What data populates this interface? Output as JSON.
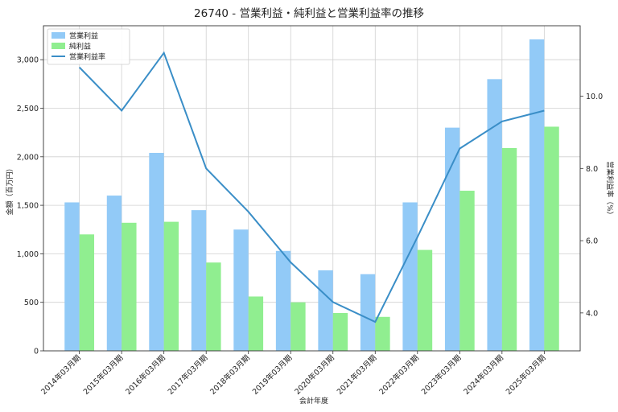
{
  "chart_data": {
    "type": "bar",
    "title": "26740 - 営業利益・純利益と営業利益率の推移",
    "xlabel": "会計年度",
    "ylabel": "金額（百万円）",
    "y2label": "営業利益率（%）",
    "categories": [
      "2014年03月期",
      "2015年03月期",
      "2016年03月期",
      "2017年03月期",
      "2018年03月期",
      "2019年03月期",
      "2020年03月期",
      "2021年03月期",
      "2022年03月期",
      "2023年03月期",
      "2024年03月期",
      "2025年03月期"
    ],
    "series": [
      {
        "name": "営業利益",
        "kind": "bar",
        "axis": "left",
        "color": "#92caf7",
        "values": [
          1530,
          1600,
          2040,
          1450,
          1250,
          1030,
          830,
          790,
          1530,
          2300,
          2800,
          3210
        ]
      },
      {
        "name": "純利益",
        "kind": "bar",
        "axis": "left",
        "color": "#90ee90",
        "values": [
          1200,
          1320,
          1330,
          910,
          560,
          500,
          390,
          350,
          1040,
          1650,
          2090,
          2310
        ]
      },
      {
        "name": "営業利益率",
        "kind": "line",
        "axis": "right",
        "color": "#3a8ec7",
        "values": [
          10.8,
          9.6,
          11.2,
          8.0,
          6.8,
          5.4,
          4.3,
          3.75,
          6.1,
          8.55,
          9.3,
          9.6
        ]
      }
    ],
    "ylim": [
      0,
      3350
    ],
    "yticks": [
      0,
      500,
      1000,
      1500,
      2000,
      2500,
      3000
    ],
    "ytick_labels": [
      "0",
      "500",
      "1,000",
      "1,500",
      "2,000",
      "2,500",
      "3,000"
    ],
    "y2lim": [
      2.95,
      11.95
    ],
    "y2ticks": [
      4.0,
      6.0,
      8.0,
      10.0
    ],
    "y2tick_labels": [
      "4.0",
      "6.0",
      "8.0",
      "10.0"
    ],
    "grid": true,
    "legend_position": "top-left"
  }
}
